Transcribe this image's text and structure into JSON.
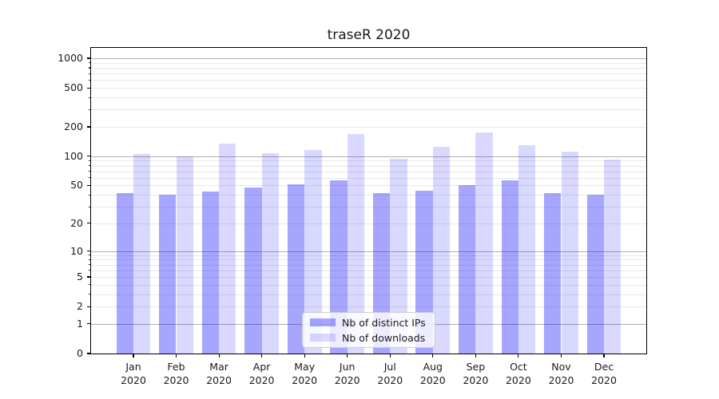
{
  "chart_data": {
    "type": "bar",
    "title": "traseR 2020",
    "categories": [
      "Jan",
      "Feb",
      "Mar",
      "Apr",
      "May",
      "Jun",
      "Jul",
      "Aug",
      "Sep",
      "Oct",
      "Nov",
      "Dec"
    ],
    "category_sublabel": "2020",
    "series": [
      {
        "name": "Nb of distinct IPs",
        "color": "rgba(0,0,255,0.35)",
        "values": [
          42,
          40,
          43,
          48,
          51,
          57,
          42,
          44,
          50,
          57,
          42,
          40
        ]
      },
      {
        "name": "Nb of downloads",
        "color": "rgba(0,0,255,0.15)",
        "values": [
          105,
          100,
          135,
          108,
          116,
          170,
          94,
          124,
          174,
          131,
          112,
          92
        ]
      }
    ],
    "y_scale": "log1p",
    "y_ticks": [
      1000,
      500,
      200,
      100,
      50,
      20,
      10,
      5,
      2,
      1,
      0
    ],
    "y_major_gridlines": [
      1,
      10,
      100,
      1000
    ],
    "y_top_value": 1275,
    "grid": "on",
    "legend_position": "lower-center",
    "colors": {
      "major_grid": "#b0b0b0",
      "minor_grid": "#e8e8e8",
      "axis": "#000000",
      "text": "#1a1a1a",
      "legend_border": "#cccccc",
      "legend_bg": "rgba(255,255,255,0.8)"
    }
  }
}
